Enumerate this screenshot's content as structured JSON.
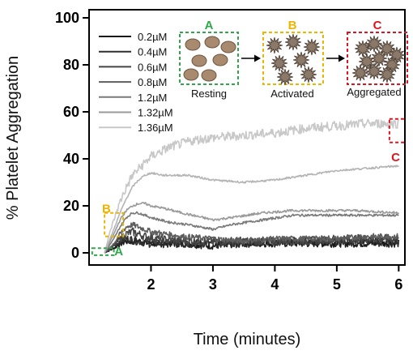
{
  "chart_data": {
    "type": "line",
    "title": "",
    "xlabel": "Time (minutes)",
    "ylabel": "% Platelet Aggregation",
    "xlim": [
      1.0,
      6.1
    ],
    "ylim": [
      0,
      100
    ],
    "x_ticks": [
      2,
      3,
      4,
      5,
      6
    ],
    "x_tick_labels": [
      "2",
      "3",
      "4",
      "5",
      "6"
    ],
    "y_ticks": [
      0,
      20,
      40,
      60,
      80,
      100
    ],
    "y_tick_labels": [
      "0",
      "20",
      "40",
      "60",
      "80",
      "100"
    ],
    "grid": false,
    "legend_position": "top-left",
    "series": [
      {
        "name": "0.2µM",
        "color": "#1a1a1a",
        "noise": 1.6,
        "points": [
          [
            1.25,
            0
          ],
          [
            1.4,
            2
          ],
          [
            1.5,
            4
          ],
          [
            1.6,
            5
          ],
          [
            1.8,
            5
          ],
          [
            2.0,
            4
          ],
          [
            2.5,
            4
          ],
          [
            3.0,
            3
          ],
          [
            3.5,
            4
          ],
          [
            4.0,
            4
          ],
          [
            4.5,
            4
          ],
          [
            5.0,
            4
          ],
          [
            5.5,
            4
          ],
          [
            6.0,
            4
          ]
        ]
      },
      {
        "name": "0.4µM",
        "color": "#2e2e2e",
        "noise": 1.8,
        "points": [
          [
            1.25,
            0
          ],
          [
            1.4,
            3
          ],
          [
            1.5,
            5
          ],
          [
            1.6,
            6
          ],
          [
            1.8,
            5
          ],
          [
            2.0,
            4
          ],
          [
            2.5,
            4
          ],
          [
            3.0,
            4
          ],
          [
            3.5,
            4
          ],
          [
            4.0,
            5
          ],
          [
            4.5,
            5
          ],
          [
            5.0,
            5
          ],
          [
            5.5,
            5
          ],
          [
            6.0,
            5
          ]
        ]
      },
      {
        "name": "0.6µM",
        "color": "#454545",
        "noise": 1.8,
        "points": [
          [
            1.25,
            0
          ],
          [
            1.4,
            3
          ],
          [
            1.5,
            6
          ],
          [
            1.6,
            8
          ],
          [
            1.7,
            9
          ],
          [
            1.9,
            7
          ],
          [
            2.1,
            6
          ],
          [
            2.5,
            5
          ],
          [
            3.0,
            5
          ],
          [
            3.5,
            5
          ],
          [
            4.0,
            5
          ],
          [
            4.5,
            5
          ],
          [
            5.0,
            6
          ],
          [
            5.5,
            6
          ],
          [
            6.0,
            6
          ]
        ]
      },
      {
        "name": "0.8µM",
        "color": "#5e5e5e",
        "noise": 1.2,
        "points": [
          [
            1.25,
            0
          ],
          [
            1.4,
            4
          ],
          [
            1.5,
            8
          ],
          [
            1.6,
            11
          ],
          [
            1.7,
            12
          ],
          [
            1.8,
            11
          ],
          [
            2.0,
            9
          ],
          [
            2.5,
            7
          ],
          [
            3.0,
            6
          ],
          [
            3.5,
            5
          ],
          [
            4.0,
            6
          ],
          [
            4.5,
            6
          ],
          [
            5.0,
            6
          ],
          [
            5.5,
            7
          ],
          [
            6.0,
            7
          ]
        ]
      },
      {
        "name": "1.2µM",
        "color": "#7a7a7a",
        "noise": 0.5,
        "points": [
          [
            1.25,
            0
          ],
          [
            1.4,
            6
          ],
          [
            1.5,
            11
          ],
          [
            1.6,
            15
          ],
          [
            1.7,
            17
          ],
          [
            1.8,
            17
          ],
          [
            1.9,
            16
          ],
          [
            2.0,
            15
          ],
          [
            2.3,
            13
          ],
          [
            2.6,
            12
          ],
          [
            3.0,
            10
          ],
          [
            3.3,
            12
          ],
          [
            3.8,
            14
          ],
          [
            4.3,
            16
          ],
          [
            4.8,
            16
          ],
          [
            5.3,
            16
          ],
          [
            6.0,
            16
          ]
        ]
      },
      {
        "name": "1.32µM",
        "color": "#9a9a9a",
        "noise": 0.5,
        "points": [
          [
            1.25,
            0
          ],
          [
            1.4,
            8
          ],
          [
            1.5,
            14
          ],
          [
            1.6,
            18
          ],
          [
            1.7,
            20
          ],
          [
            1.8,
            21
          ],
          [
            1.9,
            21
          ],
          [
            2.0,
            20
          ],
          [
            2.2,
            19
          ],
          [
            2.5,
            17
          ],
          [
            3.0,
            14
          ],
          [
            3.3,
            15
          ],
          [
            3.8,
            17
          ],
          [
            4.3,
            18
          ],
          [
            4.8,
            18
          ],
          [
            5.3,
            18
          ],
          [
            6.0,
            17
          ]
        ]
      },
      {
        "name": "1.36µM",
        "color": "#c8c8c8",
        "noise": 2.0,
        "points": [
          [
            1.25,
            0
          ],
          [
            1.35,
            10
          ],
          [
            1.45,
            18
          ],
          [
            1.55,
            25
          ],
          [
            1.7,
            33
          ],
          [
            1.85,
            37
          ],
          [
            2.0,
            41
          ],
          [
            2.3,
            45
          ],
          [
            2.7,
            48
          ],
          [
            3.0,
            49
          ],
          [
            3.5,
            50
          ],
          [
            4.0,
            51
          ],
          [
            4.5,
            53
          ],
          [
            5.0,
            54
          ],
          [
            5.5,
            55
          ],
          [
            6.0,
            55
          ]
        ]
      },
      {
        "name": "",
        "color": "#b4b4b4",
        "noise": 0.4,
        "points": [
          [
            1.25,
            0
          ],
          [
            1.4,
            10
          ],
          [
            1.5,
            17
          ],
          [
            1.6,
            23
          ],
          [
            1.7,
            28
          ],
          [
            1.8,
            31
          ],
          [
            1.9,
            33
          ],
          [
            2.0,
            34
          ],
          [
            2.2,
            33
          ],
          [
            2.6,
            33
          ],
          [
            3.0,
            31
          ],
          [
            3.5,
            30
          ],
          [
            4.0,
            31
          ],
          [
            4.5,
            33
          ],
          [
            5.0,
            35
          ],
          [
            5.5,
            36
          ],
          [
            6.0,
            37
          ]
        ]
      }
    ],
    "annotations": [
      {
        "label": "A",
        "color": "#2ea84a",
        "x0": 1.05,
        "x1": 1.4,
        "y0": -1,
        "y1": 2,
        "label_x": 1.48,
        "label_y": -1
      },
      {
        "label": "B",
        "color": "#f0b400",
        "x0": 1.25,
        "x1": 1.55,
        "y0": 7,
        "y1": 17,
        "label_x": 1.28,
        "label_y": 17
      },
      {
        "label": "C",
        "color": "#e0141e",
        "x0": 5.85,
        "x1": 6.1,
        "y0": 47,
        "y1": 57,
        "label_x": 5.95,
        "label_y": 39
      }
    ]
  },
  "stages": [
    {
      "key": "A",
      "letter": "A",
      "caption": "Resting",
      "color": "#2ea84a"
    },
    {
      "key": "B",
      "letter": "B",
      "caption": "Activated",
      "color": "#f0b400"
    },
    {
      "key": "C",
      "letter": "C",
      "caption": "Aggregated",
      "color": "#e0141e"
    }
  ]
}
